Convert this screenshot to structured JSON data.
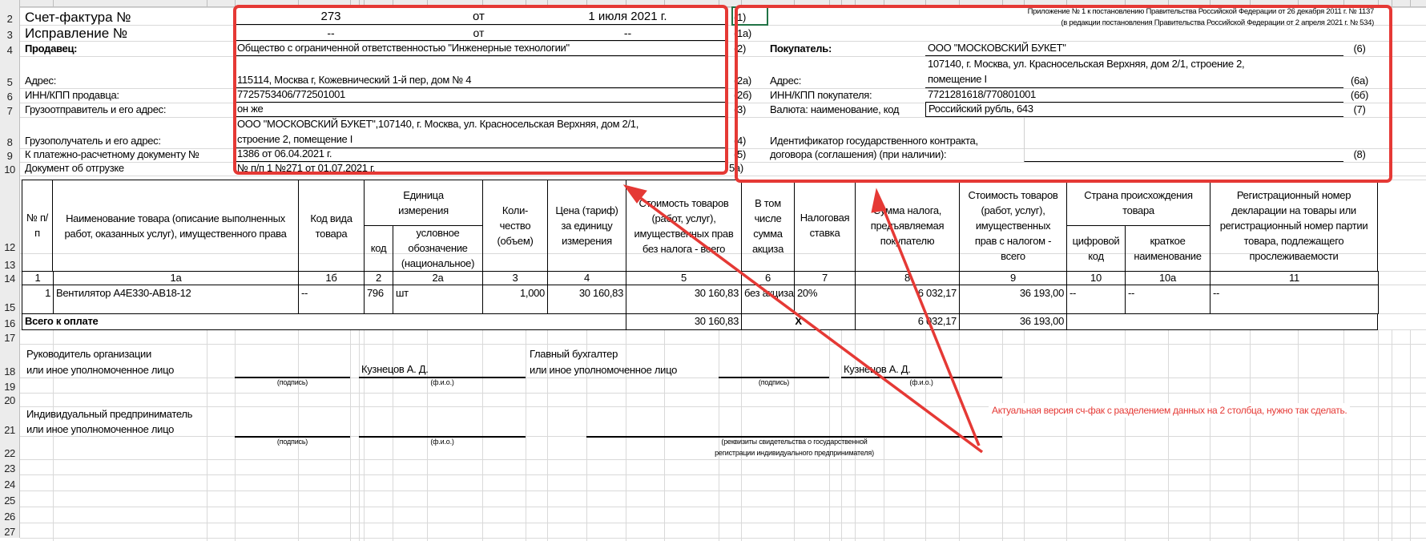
{
  "row_numbers": [
    "2",
    "3",
    "4",
    "5",
    "6",
    "7",
    "8",
    "9",
    "10",
    "12",
    "13",
    "14",
    "15",
    "16",
    "17",
    "18",
    "19",
    "20",
    "21",
    "22",
    "23",
    "24",
    "25",
    "26",
    "27"
  ],
  "invoice": {
    "title_label": "Счет-фактура №",
    "number": "273",
    "from_label": "от",
    "date": "1 июля 2021 г.",
    "correction_label": "Исправление №",
    "correction_number": "--",
    "correction_from_label": "от",
    "correction_date": "--"
  },
  "seller": {
    "label": "Продавец:",
    "name": "Общество с ограниченной ответственностью \"Инженерные технологии\"",
    "address_label": "Адрес:",
    "address": "115114, Москва г, Кожевнический 1-й пер, дом № 4",
    "inn_label": "ИНН/КПП продавца:",
    "inn": "7725753406/772501001",
    "shipper_label": "Грузоотправитель и его адрес:",
    "shipper": "он же",
    "consignee_label": "Грузополучатель и его адрес:",
    "consignee_line1": "ООО \"МОСКОВСКИЙ БУКЕТ\",107140, г. Москва, ул. Красносельская Верхняя, дом 2/1,",
    "consignee_line2": "строение 2, помещение I",
    "payment_doc_label": "К платежно-расчетному документу №",
    "payment_doc": "1386 от 06.04.2021 г.",
    "shipping_doc_label": "Документ об отгрузке",
    "shipping_doc": "№ п/п 1 №271 от 01.07.2021 г."
  },
  "left_codes": [
    "(1)",
    "(1а)",
    "(2)",
    "(2а)",
    "(2б)",
    "(3)",
    "(4)",
    "(5)",
    "5а)"
  ],
  "buyer": {
    "appendix_line1": "Приложение № 1 к постановлению Правительства Российской Федерации от 26 декабря 2011 г. № 1137",
    "appendix_line2": "(в редакции постановления Правительства Российской Федерации от 2 апреля 2021 г. № 534)",
    "label": "Покупатель:",
    "name": "ООО \"МОСКОВСКИЙ БУКЕТ\"",
    "address_label": "Адрес:",
    "address_line1": "107140, г. Москва, ул. Красносельская Верхняя, дом 2/1, строение 2,",
    "address_line2": "помещение I",
    "inn_label": "ИНН/КПП покупателя:",
    "inn": "7721281618/770801001",
    "currency_label": "Валюта: наименование, код",
    "currency": "Российский рубль, 643",
    "contract_label_line1": "Идентификатор государственного контракта,",
    "contract_label_line2": "договора (соглашения) (при наличии):",
    "codes": [
      "(6)",
      "(6а)",
      "(6б)",
      "(7)",
      "(8)"
    ]
  },
  "table": {
    "headers": {
      "num": "№ п/п",
      "name": "Наименование товара (описание выполненных работ, оказанных услуг), имущественного права",
      "type_code": "Код вида товара",
      "unit": "Единица измерения",
      "unit_code": "код",
      "unit_symbol": "условное обозначение (национальное)",
      "qty": "Коли-чество (объем)",
      "price": "Цена (тариф) за единицу измерения",
      "cost_no_tax": "Стоимость товаров (работ, услуг), имущественных прав без налога - всего",
      "excise": "В том числе сумма акциза",
      "tax_rate": "Налоговая ставка",
      "tax_sum": "Сумма налога, предъявляемая покупателю",
      "cost_with_tax": "Стоимость товаров (работ, услуг), имущественных прав с налогом - всего",
      "country": "Страна происхождения товара",
      "country_code": "цифровой код",
      "country_name": "краткое наименование",
      "declaration": "Регистрационный номер декларации на товары или регистрационный номер партии товара, подлежащего прослеживаемости"
    },
    "col_numbers": [
      "1",
      "1а",
      "1б",
      "2",
      "2а",
      "3",
      "4",
      "5",
      "6",
      "7",
      "8",
      "9",
      "10",
      "10а",
      "11"
    ],
    "rows": [
      {
        "num": "1",
        "name": "Вентилятор A4E330-AB18-12",
        "type_code": "--",
        "unit_code": "796",
        "unit_symbol": "шт",
        "qty": "1,000",
        "price": "30 160,83",
        "cost_no_tax": "30 160,83",
        "excise": "без акциза",
        "tax_rate": "20%",
        "tax_sum": "6 032,17",
        "cost_with_tax": "36 193,00",
        "country_code": "--",
        "country_name": "--",
        "declaration": "--"
      }
    ],
    "total": {
      "label": "Всего к оплате",
      "cost_no_tax": "30 160,83",
      "excise": "X",
      "tax_sum": "6 032,17",
      "cost_with_tax": "36 193,00"
    }
  },
  "signatures": {
    "head_line1": "Руководитель организации",
    "head_line2": "или иное уполномоченное лицо",
    "head_name": "Кузнецов А. Д.",
    "accountant_line1": "Главный бухгалтер",
    "accountant_line2": "или иное уполномоченное лицо",
    "accountant_name": "Кузнецов А. Д.",
    "signature_caption": "(подпись)",
    "name_caption": "(ф.и.о.)",
    "entrepreneur_line1": "Индивидуальный предприниматель",
    "entrepreneur_line2": "или иное уполномоченное лицо",
    "registration_caption_line1": "(реквизиты свидетельства о государственной",
    "registration_caption_line2": "регистрации индивидуального предпринимателя)"
  },
  "annotation": {
    "text": "Актуальная версия сч-фак с разделением данных на 2 столбца, нужно так сделать.",
    "color": "#e53935"
  },
  "selection_color": "#217346"
}
